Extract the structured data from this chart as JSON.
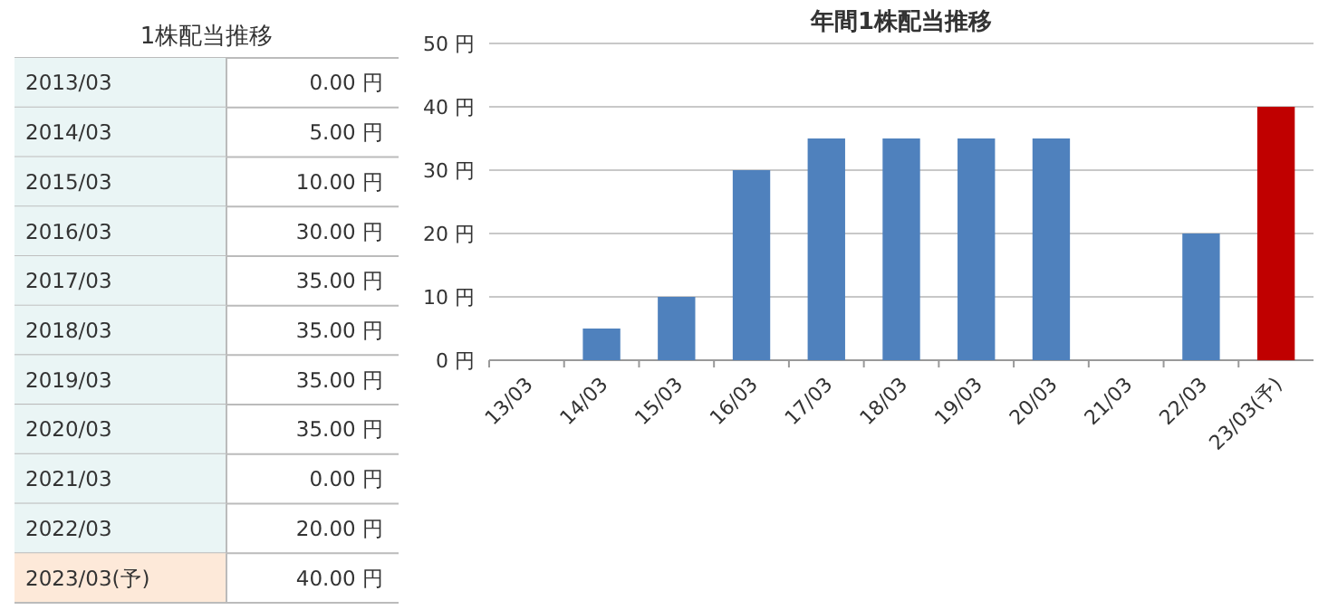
{
  "chart_data": [
    {
      "type": "other",
      "title": "1株配当推移",
      "categories": [
        "2013/03",
        "2014/03",
        "2015/03",
        "2016/03",
        "2017/03",
        "2018/03",
        "2019/03",
        "2020/03",
        "2021/03",
        "2022/03",
        "2023/03(予)"
      ],
      "values": [
        0,
        5,
        10,
        30,
        35,
        35,
        35,
        35,
        0,
        20,
        40
      ],
      "value_labels": [
        "0.00 円",
        "5.00 円",
        "10.00 円",
        "30.00 円",
        "35.00 円",
        "35.00 円",
        "35.00 円",
        "35.00 円",
        "0.00 円",
        "20.00 円",
        "40.00 円"
      ],
      "colors": [
        "#eaf5f5",
        "#eaf5f5",
        "#eaf5f5",
        "#eaf5f5",
        "#eaf5f5",
        "#eaf5f5",
        "#eaf5f5",
        "#eaf5f5",
        "#eaf5f5",
        "#eaf5f5",
        "#fde9d9"
      ]
    },
    {
      "type": "bar",
      "title": "年間1株配当推移",
      "categories": [
        "13/03",
        "14/03",
        "15/03",
        "16/03",
        "17/03",
        "18/03",
        "19/03",
        "20/03",
        "21/03",
        "22/03",
        "23/03(予)"
      ],
      "values": [
        0,
        5,
        10,
        30,
        35,
        35,
        35,
        35,
        0,
        20,
        40
      ],
      "colors": [
        "#4f81bd",
        "#4f81bd",
        "#4f81bd",
        "#4f81bd",
        "#4f81bd",
        "#4f81bd",
        "#4f81bd",
        "#4f81bd",
        "#4f81bd",
        "#4f81bd",
        "#c00000"
      ],
      "ylim": [
        0,
        50
      ],
      "yticks": [
        {
          "value": 0,
          "label": "0 円"
        },
        {
          "value": 10,
          "label": "10 円"
        },
        {
          "value": 20,
          "label": "20 円"
        },
        {
          "value": 30,
          "label": "30 円"
        },
        {
          "value": 40,
          "label": "40 円"
        },
        {
          "value": 50,
          "label": "50 円"
        }
      ],
      "grid": "y"
    }
  ]
}
